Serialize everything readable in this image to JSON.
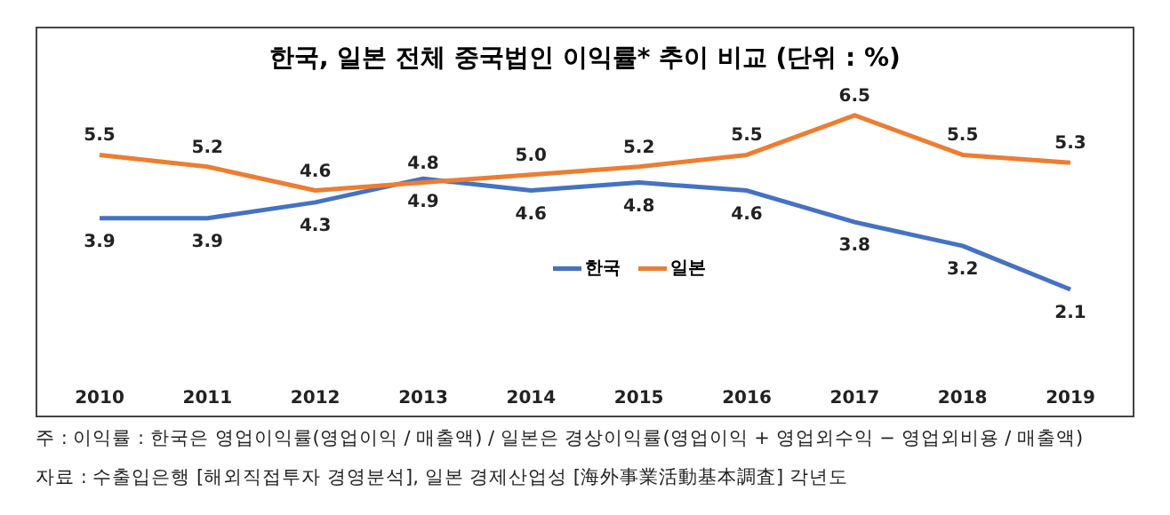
{
  "chart_data": {
    "type": "line",
    "title": "한국, 일본 전체 중국법인 이익률* 추이 비교 (단위 : %)",
    "categories": [
      "2010",
      "2011",
      "2012",
      "2013",
      "2014",
      "2015",
      "2016",
      "2017",
      "2018",
      "2019"
    ],
    "series": [
      {
        "name": "한국",
        "color": "#4472c4",
        "values": [
          3.9,
          3.9,
          4.3,
          4.9,
          4.6,
          4.8,
          4.6,
          3.8,
          3.2,
          2.1
        ],
        "value_labels": [
          "3.9",
          "3.9",
          "4.3",
          "4.9",
          "4.6",
          "4.8",
          "4.6",
          "3.8",
          "3.2",
          "2.1"
        ]
      },
      {
        "name": "일본",
        "color": "#ed7d31",
        "values": [
          5.5,
          5.2,
          4.6,
          4.8,
          5.0,
          5.2,
          5.5,
          6.5,
          5.5,
          5.3
        ],
        "value_labels": [
          "5.5",
          "5.2",
          "4.6",
          "4.8",
          "5.0",
          "5.2",
          "5.5",
          "6.5",
          "5.5",
          "5.3"
        ]
      }
    ],
    "legend": "center",
    "marker": "none",
    "line_style": "solid",
    "tick_labels": "x",
    "annotations": [
      "주 : 이익률 : 한국은 영업이익률(영업이익 / 매출액) / 일본은 경상이익률(영업이익 + 영업외수익 − 영업외비용 / 매출액)",
      "자료 : 수출입은행 [해외직접투자 경영분석], 일본 경제산업성 [海外事業活動基本調査] 각년도"
    ]
  }
}
